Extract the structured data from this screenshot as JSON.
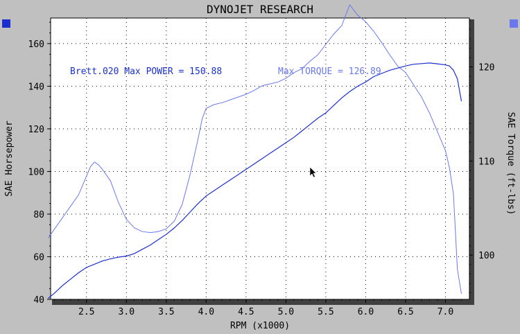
{
  "chart_data": {
    "type": "line",
    "title": "DYNOJET RESEARCH",
    "xlabel": "RPM (x1000)",
    "ylabel_left": "SAE Horsepower",
    "ylabel_right": "SAE Torque (ft-lbs)",
    "xlim": [
      2.05,
      7.3
    ],
    "ylim_left": [
      40,
      172
    ],
    "ylim_right": [
      95.3,
      125.2
    ],
    "x_ticks": [
      2.5,
      3.0,
      3.5,
      4.0,
      4.5,
      5.0,
      5.5,
      6.0,
      6.5,
      7.0
    ],
    "x_tick_labels": [
      "2.5",
      "3.0",
      "3.5",
      "4.0",
      "4.5",
      "5.0",
      "5.5",
      "6.0",
      "6.5",
      "7.0"
    ],
    "y_ticks_left": [
      40,
      60,
      80,
      100,
      120,
      140,
      160
    ],
    "y_tick_labels_left": [
      "40",
      "60",
      "80",
      "100",
      "120",
      "140",
      "160"
    ],
    "y_ticks_right": [
      100,
      110,
      120
    ],
    "y_tick_labels_right": [
      "100",
      "110",
      "120"
    ],
    "grid": true,
    "colors": {
      "power": "#1a2fd0",
      "torque": "#6a78f0",
      "legend_left_square": "#1a2fd0",
      "legend_right_square": "#6a78f0"
    },
    "annotations": {
      "power_label": "Brett.020 Max POWER = 150.88",
      "torque_label": "Max TORQUE = 126.89"
    },
    "series": [
      {
        "key": "power",
        "axis": "left",
        "x": [
          2.02,
          2.1,
          2.2,
          2.3,
          2.4,
          2.5,
          2.6,
          2.7,
          2.8,
          2.9,
          3.0,
          3.1,
          3.2,
          3.3,
          3.4,
          3.5,
          3.6,
          3.7,
          3.8,
          3.9,
          4.0,
          4.1,
          4.2,
          4.3,
          4.4,
          4.5,
          4.6,
          4.7,
          4.8,
          4.9,
          5.0,
          5.1,
          5.2,
          5.3,
          5.4,
          5.5,
          5.6,
          5.7,
          5.8,
          5.9,
          6.0,
          6.1,
          6.2,
          6.3,
          6.4,
          6.5,
          6.6,
          6.7,
          6.8,
          6.9,
          7.0,
          7.05,
          7.1,
          7.15,
          7.2
        ],
        "y": [
          40.5,
          43,
          46.5,
          49.5,
          52.5,
          55,
          56.5,
          58,
          59,
          59.8,
          60.3,
          61.5,
          63.5,
          65.5,
          68,
          70.5,
          73.5,
          77,
          81,
          85,
          88.5,
          91,
          93.5,
          96,
          98.5,
          101,
          103.5,
          106,
          108.5,
          111,
          113.5,
          116,
          119,
          122,
          125,
          127.5,
          131,
          134.5,
          137.5,
          140,
          142,
          144.5,
          146,
          147.5,
          148.5,
          149.5,
          150.3,
          150.6,
          150.9,
          150.5,
          150,
          149.5,
          147.5,
          143.5,
          133
        ]
      },
      {
        "key": "torque",
        "axis": "right",
        "x": [
          2.02,
          2.1,
          2.2,
          2.3,
          2.4,
          2.5,
          2.55,
          2.6,
          2.65,
          2.7,
          2.8,
          2.9,
          3.0,
          3.1,
          3.2,
          3.3,
          3.4,
          3.5,
          3.6,
          3.7,
          3.8,
          3.9,
          3.95,
          4.0,
          4.1,
          4.2,
          4.3,
          4.4,
          4.5,
          4.6,
          4.7,
          4.8,
          4.9,
          5.0,
          5.1,
          5.2,
          5.3,
          5.4,
          5.5,
          5.6,
          5.7,
          5.8,
          5.9,
          6.0,
          6.1,
          6.2,
          6.3,
          6.4,
          6.5,
          6.6,
          6.7,
          6.8,
          6.9,
          7.0,
          7.05,
          7.1,
          7.15,
          7.2
        ],
        "y": [
          101.8,
          102.8,
          104.0,
          105.2,
          106.4,
          108.4,
          109.4,
          109.9,
          109.6,
          109.1,
          107.9,
          105.6,
          103.8,
          102.9,
          102.5,
          102.4,
          102.5,
          102.8,
          103.6,
          105.4,
          108.6,
          112.4,
          114.5,
          115.6,
          116.0,
          116.2,
          116.5,
          116.8,
          117.1,
          117.5,
          118.0,
          118.2,
          118.4,
          118.8,
          119.4,
          119.8,
          120.6,
          121.3,
          122.4,
          123.5,
          124.4,
          126.6,
          125.5,
          124.8,
          123.8,
          122.6,
          121.3,
          120.1,
          119.4,
          118.1,
          116.8,
          115.1,
          113.1,
          111.1,
          109.3,
          106.5,
          98.5,
          95.9
        ]
      }
    ]
  }
}
